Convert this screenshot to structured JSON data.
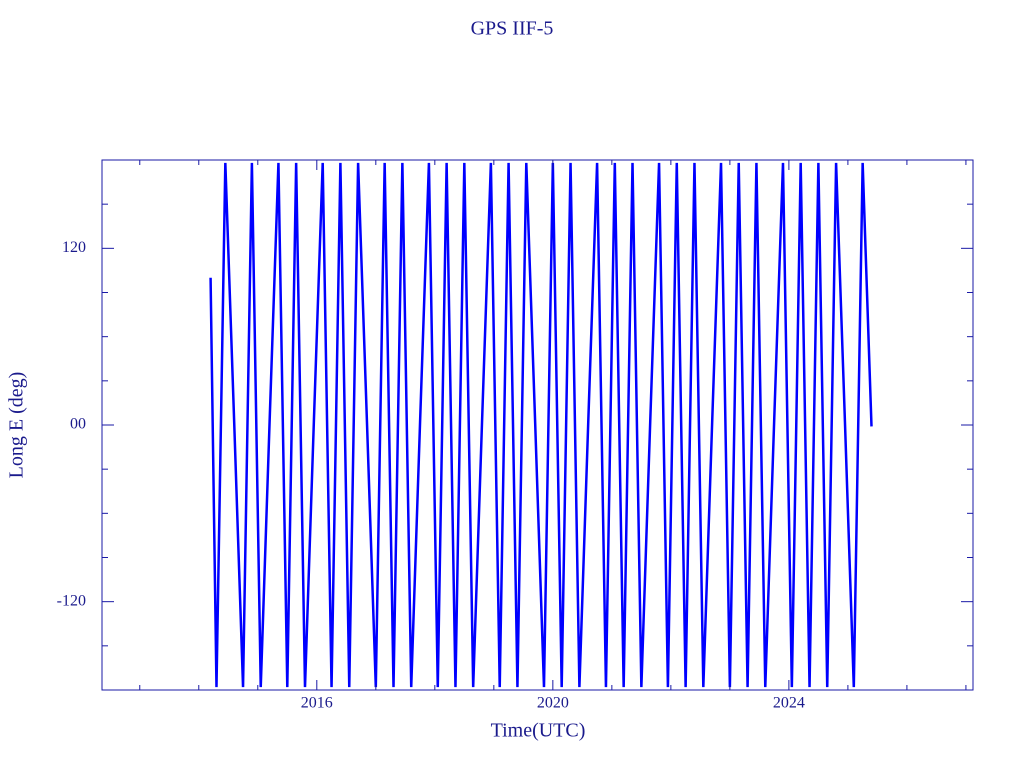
{
  "chart_data": {
    "type": "line",
    "title": "GPS IIF-5",
    "x_label": "Time(UTC)",
    "y_label": "Long E (deg)",
    "x": [
      2014.2,
      2014.3,
      2014.45,
      2014.6,
      2014.75,
      2014.9,
      2015.05,
      2015.2,
      2015.35,
      2015.5,
      2015.65,
      2015.8,
      2015.95,
      2016.1,
      2016.25,
      2016.4,
      2016.55,
      2016.7,
      2016.85,
      2017.0,
      2017.15,
      2017.3,
      2017.45,
      2017.6,
      2017.75,
      2017.9,
      2018.05,
      2018.2,
      2018.35,
      2018.5,
      2018.65,
      2018.8,
      2018.95,
      2019.1,
      2019.25,
      2019.4,
      2019.55,
      2019.7,
      2019.85,
      2020.0,
      2020.15,
      2020.3,
      2020.45,
      2020.6,
      2020.75,
      2020.9,
      2021.05,
      2021.2,
      2021.35,
      2021.5,
      2021.65,
      2021.8,
      2021.95,
      2022.1,
      2022.25,
      2022.4,
      2022.55,
      2022.7,
      2022.85,
      2023.0,
      2023.15,
      2023.3,
      2023.45,
      2023.6,
      2023.75,
      2023.9,
      2024.05,
      2024.2,
      2024.35,
      2024.5,
      2024.65,
      2024.8,
      2024.95,
      2025.1,
      2025.25,
      2025.4
    ],
    "series": [
      {
        "color": "#0000ff",
        "values": [
          100,
          -178,
          178,
          2,
          -178,
          178,
          -178,
          2,
          178,
          -178,
          178,
          -178,
          2,
          178,
          -178,
          178,
          -178,
          178,
          2,
          -178,
          178,
          -178,
          178,
          -178,
          2,
          178,
          -178,
          178,
          -178,
          178,
          -178,
          2,
          178,
          -178,
          178,
          -178,
          178,
          2,
          -178,
          178,
          -178,
          178,
          -178,
          2,
          178,
          -178,
          178,
          -178,
          178,
          -178,
          2,
          178,
          -178,
          178,
          -178,
          178,
          -178,
          2,
          178,
          -178,
          178,
          -178,
          178,
          -178,
          2,
          178,
          -178,
          178,
          -178,
          178,
          -178,
          178,
          2,
          -178,
          178,
          -1
        ]
      }
    ],
    "xlim": [
      2012.36,
      2027.12
    ],
    "xticks": [
      2016,
      2020,
      2024
    ],
    "xminorticks": [
      2013,
      2014,
      2015,
      2017,
      2018,
      2019,
      2021,
      2022,
      2023,
      2025,
      2026,
      2027
    ],
    "ylim": [
      -180,
      180
    ],
    "yticks": [
      -120,
      {
        "value": 0,
        "label": "00"
      },
      120
    ],
    "yminorticks": [
      -150,
      -90,
      -60,
      -30,
      30,
      60,
      90,
      150
    ],
    "axis_color": "#1a1aa6",
    "text_color": "#1a1a8c"
  }
}
